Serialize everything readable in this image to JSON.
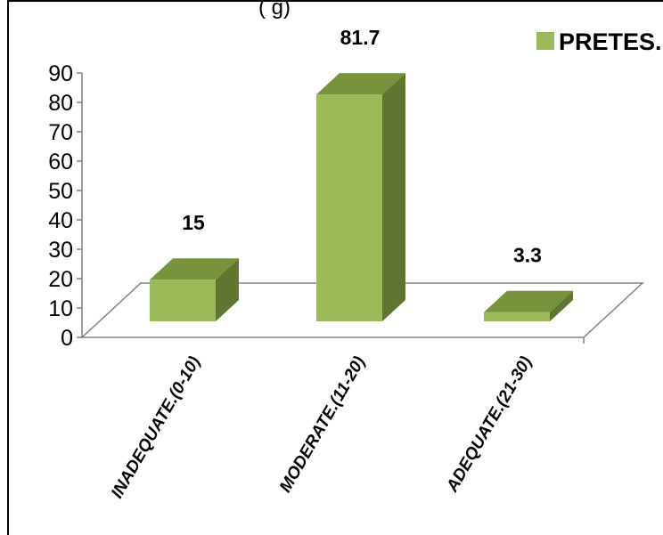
{
  "chart_data": {
    "type": "bar",
    "title_fragment": "(                    g)",
    "categories": [
      "INADEQUATE.(0-10)",
      "MODERATE.(11-20)",
      "ADEQUATE.(21-30)"
    ],
    "series": [
      {
        "name": "PRETES.",
        "values": [
          15,
          81.7,
          3.3
        ]
      }
    ],
    "data_labels": [
      "15",
      "81.7",
      "3.3"
    ],
    "y_ticks": [
      "0",
      "10",
      "20",
      "30",
      "40",
      "50",
      "60",
      "70",
      "80",
      "90"
    ],
    "ylim": [
      0,
      90
    ],
    "grid": false,
    "legend_position": "top-right",
    "style": "3d-column",
    "colors": {
      "front": "#9bbb59",
      "top": "#77933c",
      "side": "#5f7530"
    }
  }
}
